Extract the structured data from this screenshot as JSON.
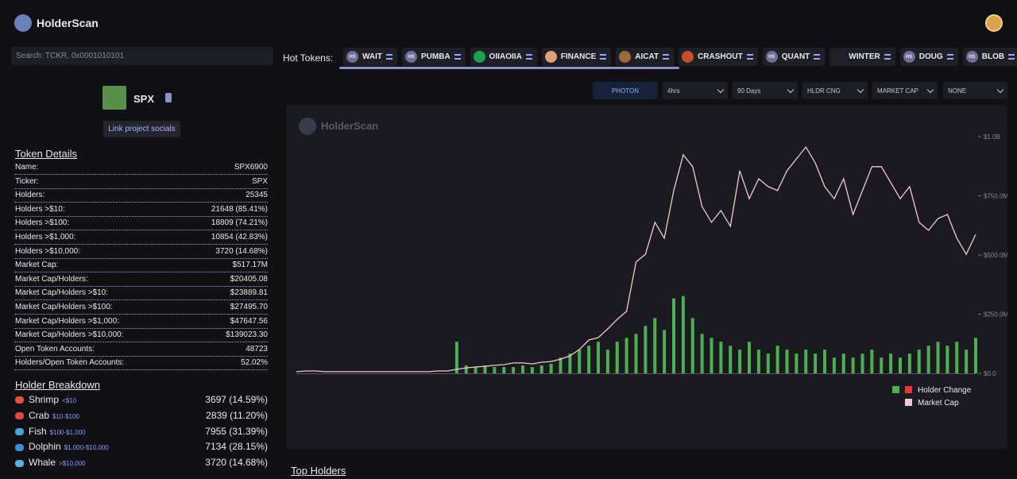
{
  "header": {
    "logo": "HolderScan"
  },
  "search": {
    "placeholder": "Search: TCKR, 0x0001010101"
  },
  "hot_tokens": {
    "label": "Hot Tokens:",
    "items": [
      {
        "name": "WAIT",
        "badge": "HS"
      },
      {
        "name": "PUMBA",
        "badge": "HS"
      },
      {
        "name": "OIIAOIIA"
      },
      {
        "name": "FINANCE"
      },
      {
        "name": "AICAT"
      },
      {
        "name": "CRASHOUT"
      },
      {
        "name": "QUANT",
        "badge": "HS"
      },
      {
        "name": "WINTER"
      },
      {
        "name": "DOUG",
        "badge": "HS"
      },
      {
        "name": "BLOB",
        "badge": "HS"
      }
    ]
  },
  "token": {
    "ticker": "SPX",
    "link": "Link project socials"
  },
  "token_details": {
    "title": "Token Details",
    "rows": [
      [
        "Name:",
        "SPX6900"
      ],
      [
        "Ticker:",
        "SPX"
      ],
      [
        "Holders:",
        "25345"
      ],
      [
        "Holders >$10:",
        "21648 (85.41%)"
      ],
      [
        "Holders >$100:",
        "18809 (74.21%)"
      ],
      [
        "Holders >$1,000:",
        "10854 (42.83%)"
      ],
      [
        "Holders >$10,000:",
        "3720 (14.68%)"
      ],
      [
        "Market Cap:",
        "$517.17M"
      ],
      [
        "Market Cap/Holders:",
        "$20405.08"
      ],
      [
        "Market Cap/Holders >$10:",
        "$23889.81"
      ],
      [
        "Market Cap/Holders >$100:",
        "$27495.70"
      ],
      [
        "Market Cap/Holders >$1,000:",
        "$47647.56"
      ],
      [
        "Market Cap/Holders >$10,000:",
        "$139023.30"
      ],
      [
        "Open Token Accounts:",
        "48723"
      ],
      [
        "Holders/Open Token Accounts:",
        "52.02%"
      ]
    ]
  },
  "holder_breakdown": {
    "title": "Holder Breakdown",
    "rows": [
      {
        "name": "Shrimp",
        "range": "<$10",
        "value": "3697 (14.59%)",
        "color": "#e5533d"
      },
      {
        "name": "Crab",
        "range": "$10-$100",
        "value": "2839 (11.20%)",
        "color": "#e04848"
      },
      {
        "name": "Fish",
        "range": "$100-$1,000",
        "value": "7955 (31.39%)",
        "color": "#4aa3e0"
      },
      {
        "name": "Dolphin",
        "range": "$1,000-$10,000",
        "value": "7134 (28.15%)",
        "color": "#3b8fd6"
      },
      {
        "name": "Whale",
        "range": ">$10,000",
        "value": "3720 (14.68%)",
        "color": "#5ab0e8"
      }
    ]
  },
  "controls": [
    "PHOTON",
    "4hrs",
    "90 Days",
    "HLDR CNG",
    "MARKET CAP",
    "NONE"
  ],
  "chart_data": {
    "type": "combo",
    "watermark": "HolderScan",
    "ylim": [
      0,
      1000000000
    ],
    "yticks": [
      {
        "value": 0,
        "label": "$0.0"
      },
      {
        "value": 250000000,
        "label": "$250.0M"
      },
      {
        "value": 500000000,
        "label": "$500.0M"
      },
      {
        "value": 750000000,
        "label": "$750.0M"
      },
      {
        "value": 1000000000,
        "label": "$1.0B"
      }
    ],
    "y2lim": [
      0,
      300
    ],
    "series": [
      {
        "name": "Holder Change",
        "type": "bar",
        "axis": "y2",
        "color": "#4caf50",
        "negative_color": "#e53935",
        "values": [
          0,
          0,
          0,
          0,
          0,
          0,
          0,
          0,
          0,
          0,
          0,
          0,
          0,
          0,
          0,
          0,
          0,
          40,
          10,
          8,
          10,
          8,
          8,
          8,
          10,
          8,
          10,
          12,
          20,
          25,
          30,
          35,
          40,
          30,
          40,
          45,
          50,
          60,
          70,
          55,
          95,
          98,
          70,
          50,
          45,
          40,
          35,
          30,
          40,
          30,
          25,
          35,
          30,
          25,
          30,
          25,
          30,
          20,
          25,
          20,
          25,
          30,
          20,
          25,
          20,
          25,
          30,
          35,
          40,
          35,
          40,
          30,
          45
        ]
      },
      {
        "name": "Market Cap",
        "type": "line",
        "color": "#f4c6d8",
        "values": [
          7000000,
          10000000,
          10000000,
          7000000,
          7000000,
          7000000,
          7000000,
          7000000,
          7000000,
          7000000,
          7000000,
          7000000,
          7000000,
          7000000,
          7000000,
          10000000,
          10000000,
          17000000,
          23000000,
          27000000,
          30000000,
          34000000,
          37000000,
          44000000,
          44000000,
          40000000,
          47000000,
          50000000,
          60000000,
          74000000,
          101000000,
          141000000,
          151000000,
          188000000,
          228000000,
          262000000,
          470000000,
          503000000,
          638000000,
          571000000,
          772000000,
          923000000,
          873000000,
          705000000,
          638000000,
          688000000,
          621000000,
          856000000,
          738000000,
          822000000,
          789000000,
          772000000,
          856000000,
          906000000,
          956000000,
          889000000,
          789000000,
          738000000,
          822000000,
          671000000,
          772000000,
          873000000,
          873000000,
          806000000,
          738000000,
          789000000,
          638000000,
          604000000,
          654000000,
          671000000,
          571000000,
          503000000,
          587000000
        ]
      }
    ]
  },
  "section": {
    "title": "Top Holders"
  }
}
